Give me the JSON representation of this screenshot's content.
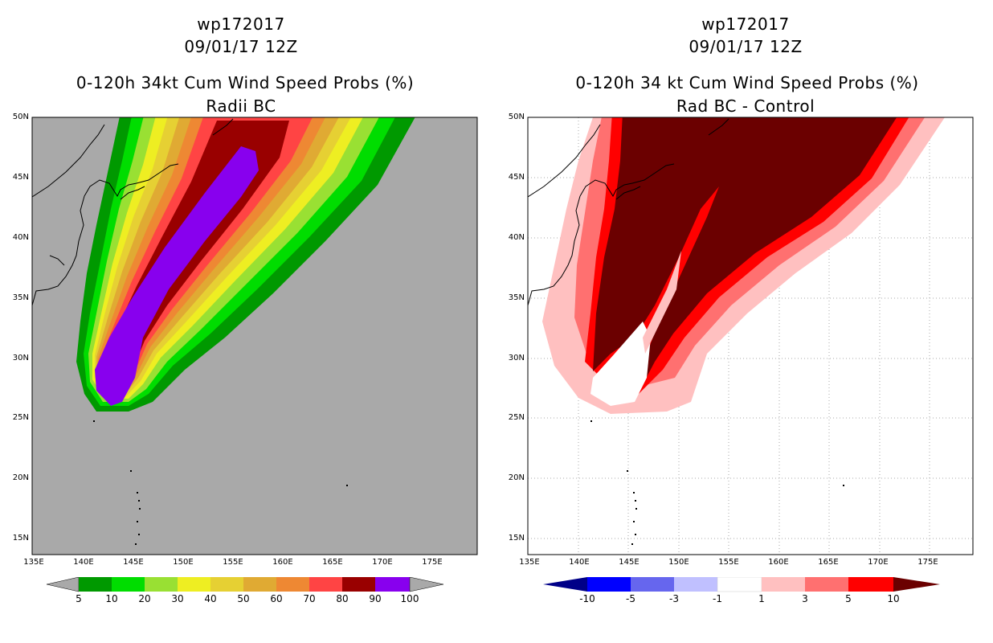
{
  "left": {
    "storm": "wp172017",
    "datetime": "09/01/17 12Z",
    "title": "0-120h 34kt Cum Wind Speed Probs (%)",
    "subtitle": "Radii BC",
    "colorbar_labels": [
      "5",
      "10",
      "20",
      "30",
      "40",
      "50",
      "60",
      "70",
      "80",
      "90",
      "100"
    ],
    "colors": {
      "background": "#a9a9a9",
      "c5": "#009900",
      "c10": "#00dd00",
      "c20": "#99e033",
      "c30": "#eeee22",
      "c40": "#e6d033",
      "c50": "#e0aa33",
      "c60": "#ee8833",
      "c70": "#ff4444",
      "c80": "#990000",
      "c90": "#8800ee"
    }
  },
  "right": {
    "storm": "wp172017",
    "datetime": "09/01/17 12Z",
    "title": "0-120h 34 kt Cum Wind Speed Probs (%)",
    "subtitle": "Rad BC - Control",
    "colorbar_labels": [
      "-10",
      "-5",
      "-3",
      "-1",
      "1",
      "3",
      "5",
      "10"
    ],
    "colors": {
      "n10": "#000088",
      "n5": "#0000ff",
      "n3": "#6666ee",
      "n1": "#c0c0ff",
      "zero": "#ffffff",
      "p1": "#ffc0c0",
      "p3": "#ff7070",
      "p5": "#ff0000",
      "p10": "#6b0000"
    }
  },
  "axes": {
    "lat_labels": [
      "50N",
      "45N",
      "40N",
      "35N",
      "30N",
      "25N",
      "20N",
      "15N"
    ],
    "lon_labels": [
      "135E",
      "140E",
      "145E",
      "150E",
      "155E",
      "160E",
      "165E",
      "170E",
      "175E"
    ]
  }
}
